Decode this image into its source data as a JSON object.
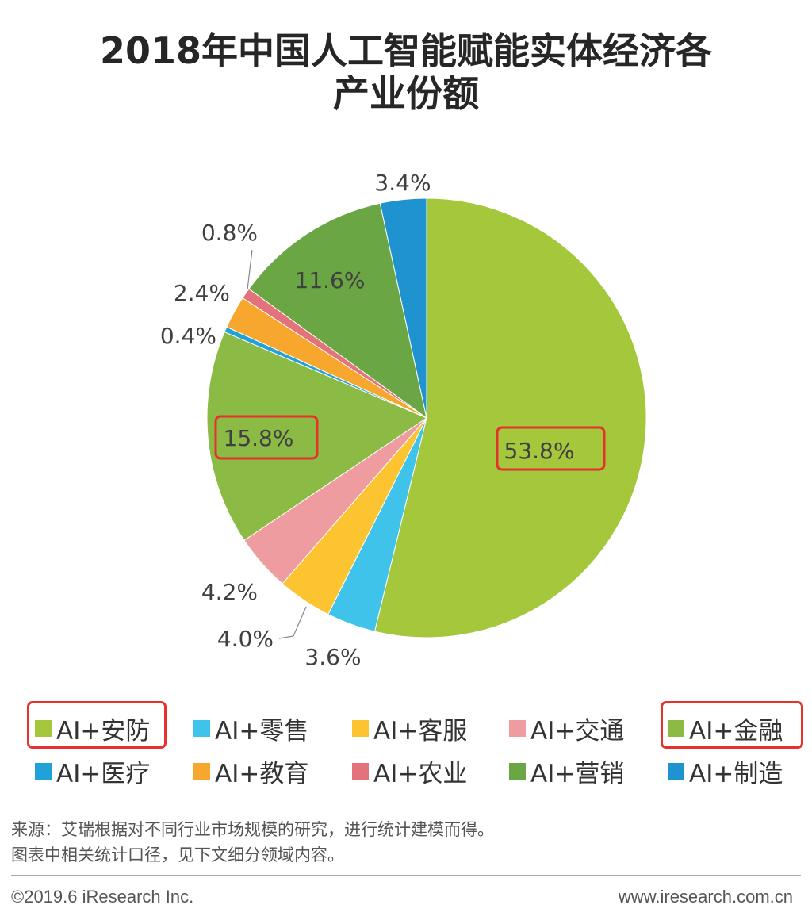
{
  "title_line1": "2018年中国人工智能赋能实体经济各",
  "title_line2": "产业份额",
  "chart_data": {
    "type": "pie",
    "title": "2018年中国人工智能赋能实体经济各产业份额",
    "slices": [
      {
        "label": "AI+安防",
        "value": 53.8,
        "value_label": "53.8%",
        "color": "#a5c73c"
      },
      {
        "label": "AI+零售",
        "value": 3.6,
        "value_label": "3.6%",
        "color": "#3fc3ea"
      },
      {
        "label": "AI+客服",
        "value": 4.0,
        "value_label": "4.0%",
        "color": "#fcc430"
      },
      {
        "label": "AI+交通",
        "value": 4.2,
        "value_label": "4.2%",
        "color": "#ef9ca0"
      },
      {
        "label": "AI+金融",
        "value": 15.8,
        "value_label": "15.8%",
        "color": "#8bbb45"
      },
      {
        "label": "AI+医疗",
        "value": 0.4,
        "value_label": "0.4%",
        "color": "#20a1d8"
      },
      {
        "label": "AI+教育",
        "value": 2.4,
        "value_label": "2.4%",
        "color": "#f7a72e"
      },
      {
        "label": "AI+农业",
        "value": 0.8,
        "value_label": "0.8%",
        "color": "#e4727a"
      },
      {
        "label": "AI+营销",
        "value": 11.6,
        "value_label": "11.6%",
        "color": "#6aa744"
      },
      {
        "label": "AI+制造",
        "value": 3.4,
        "value_label": "3.4%",
        "color": "#1f93d0"
      }
    ],
    "highlighted": [
      "AI+安防",
      "AI+金融"
    ]
  },
  "source_line1": "来源：艾瑞根据对不同行业市场规模的研究，进行统计建模而得。",
  "source_line2": "图表中相关统计口径，见下文细分领域内容。",
  "footer_left": "©2019.6 iResearch Inc.",
  "footer_right": "www.iresearch.com.cn"
}
